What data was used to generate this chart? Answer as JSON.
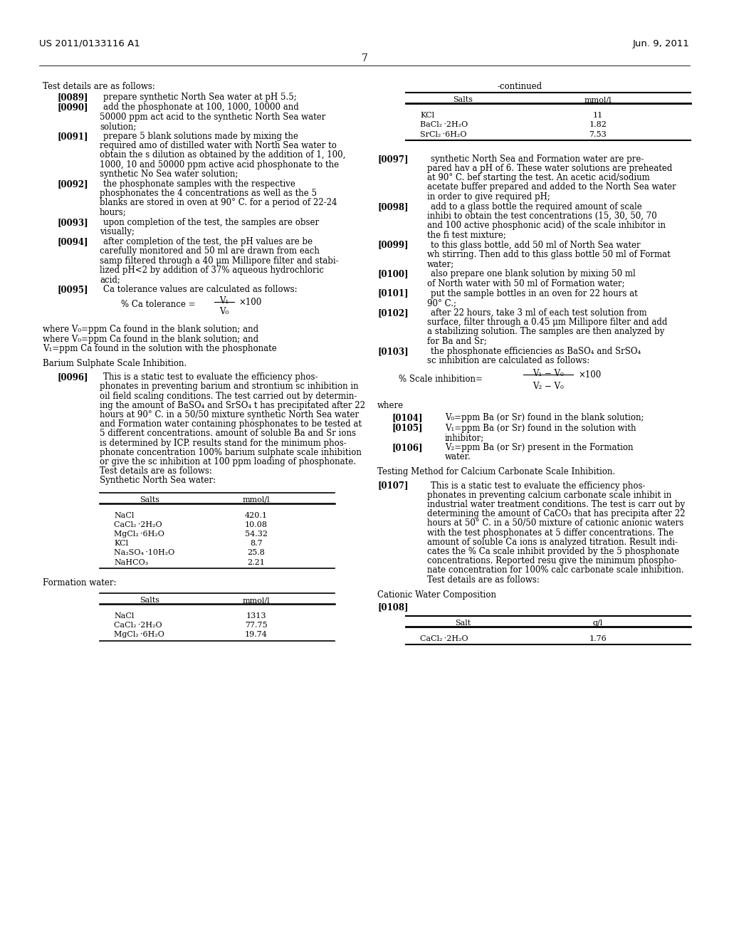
{
  "header_left": "US 2011/0133116 A1",
  "header_right": "Jun. 9, 2011",
  "page_number": "7",
  "background_color": "#ffffff",
  "text_color": "#000000",
  "table1_rows": [
    [
      "KCl",
      "11"
    ],
    [
      "BaCl₂ ·2H₂O",
      "1.82"
    ],
    [
      "SrCl₂ ·6H₂O",
      "7.53"
    ]
  ],
  "table2_rows": [
    [
      "NaCl",
      "420.1"
    ],
    [
      "CaCl₂ ·2H₂O",
      "10.08"
    ],
    [
      "MgCl₂ ·6H₂O",
      "54.32"
    ],
    [
      "KCl",
      "8.7"
    ],
    [
      "Na₂SO₄ ·10H₂O",
      "25.8"
    ],
    [
      "NaHCO₃",
      "2.21"
    ]
  ],
  "table3_rows": [
    [
      "NaCl",
      "1313"
    ],
    [
      "CaCl₂ ·2H₂O",
      "77.75"
    ],
    [
      "MgCl₂ ·6H₂O",
      "19.74"
    ]
  ],
  "table4_rows": [
    [
      "CaCl₂ ·2H₂O",
      "1.76"
    ]
  ]
}
